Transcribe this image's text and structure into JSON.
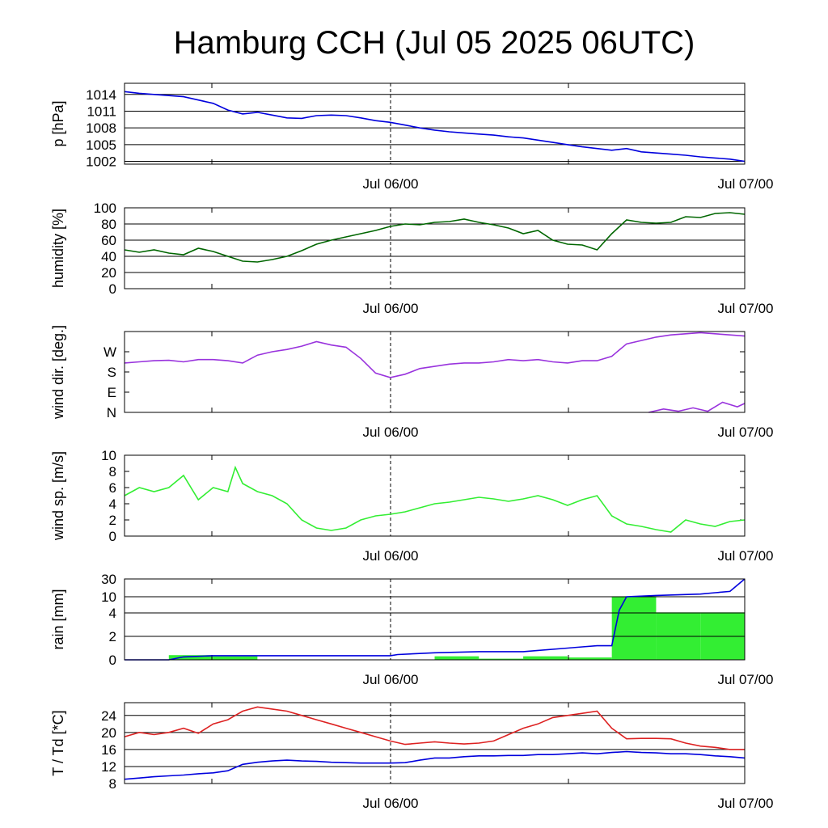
{
  "title": "Hamburg CCH (Jul 05 2025 06UTC)",
  "x_labels": [
    "Jul 06/00",
    "Jul 07/00"
  ],
  "chart_data": [
    {
      "type": "line",
      "ylabel": "p [hPa]",
      "ylim": [
        1001.5,
        1016
      ],
      "yticks": [
        1014,
        1011,
        1008,
        1005,
        1002
      ],
      "ytick_labels": [
        "1014",
        "1011",
        "1008",
        "1005",
        "1002"
      ],
      "grid": true,
      "xlim": [
        0,
        42
      ],
      "series": [
        {
          "color": "#0000dd",
          "x": [
            0,
            1,
            2,
            3,
            4,
            5,
            6,
            7,
            8,
            9,
            10,
            11,
            12,
            13,
            14,
            15,
            16,
            17,
            18,
            19,
            20,
            21,
            22,
            23,
            24,
            25,
            26,
            27,
            28,
            29,
            30,
            31,
            32,
            33,
            34,
            35,
            36,
            37,
            38,
            39,
            40,
            41,
            42
          ],
          "y": [
            1014.5,
            1014.2,
            1014.0,
            1013.8,
            1013.6,
            1013.0,
            1012.4,
            1011.2,
            1010.5,
            1010.8,
            1010.3,
            1009.8,
            1009.7,
            1010.2,
            1010.3,
            1010.2,
            1009.8,
            1009.3,
            1009.0,
            1008.5,
            1008.0,
            1007.6,
            1007.3,
            1007.1,
            1006.9,
            1006.7,
            1006.4,
            1006.2,
            1005.8,
            1005.4,
            1005.0,
            1004.6,
            1004.3,
            1004.0,
            1004.3,
            1003.7,
            1003.5,
            1003.3,
            1003.1,
            1002.8,
            1002.6,
            1002.4,
            1002.0
          ]
        }
      ]
    },
    {
      "type": "line",
      "ylabel": "humidity [%]",
      "ylim": [
        0,
        100
      ],
      "yticks": [
        100,
        80,
        60,
        40,
        20,
        0
      ],
      "ytick_labels": [
        "100",
        "80",
        "60",
        "40",
        "20",
        "0"
      ],
      "grid": true,
      "xlim": [
        0,
        42
      ],
      "series": [
        {
          "color": "#006600",
          "x": [
            0,
            1,
            2,
            3,
            4,
            5,
            6,
            7,
            8,
            9,
            10,
            11,
            12,
            13,
            14,
            15,
            16,
            17,
            18,
            19,
            20,
            21,
            22,
            23,
            24,
            25,
            26,
            27,
            28,
            29,
            30,
            31,
            32,
            33,
            34,
            35,
            36,
            37,
            38,
            39,
            40,
            41,
            42
          ],
          "y": [
            48,
            45,
            48,
            44,
            42,
            50,
            46,
            40,
            34,
            33,
            36,
            40,
            47,
            55,
            60,
            64,
            68,
            72,
            77,
            80,
            79,
            82,
            83,
            86,
            82,
            79,
            75,
            68,
            72,
            60,
            55,
            54,
            48,
            68,
            85,
            82,
            81,
            82,
            89,
            88,
            93,
            94,
            92
          ]
        }
      ]
    },
    {
      "type": "line",
      "ylabel": "wind dir. [deg.]",
      "ylim": [
        0,
        360
      ],
      "yticks": [
        270,
        180,
        90,
        0
      ],
      "ytick_labels": [
        "W",
        "S",
        "E",
        "N"
      ],
      "grid": false,
      "xlim": [
        0,
        42
      ],
      "series": [
        {
          "color": "#9933dd",
          "x": [
            0,
            1,
            2,
            3,
            4,
            5,
            6,
            7,
            8,
            9,
            10,
            11,
            12,
            13,
            14,
            15,
            16,
            17,
            18,
            19,
            20,
            21,
            22,
            23,
            24,
            25,
            26,
            27,
            28,
            29,
            30,
            31,
            32,
            33,
            34,
            35,
            36,
            37,
            38,
            39,
            40,
            41,
            42
          ],
          "y": [
            220,
            225,
            230,
            232,
            225,
            235,
            235,
            230,
            220,
            255,
            270,
            280,
            295,
            315,
            300,
            290,
            240,
            175,
            155,
            170,
            195,
            205,
            215,
            220,
            220,
            225,
            235,
            230,
            235,
            225,
            220,
            230,
            230,
            250,
            305,
            320,
            335,
            345,
            350,
            355,
            350,
            345,
            340
          ]
        },
        {
          "color": "#9933dd",
          "x": [
            35.5,
            36.5,
            37.5,
            38.5,
            39.5,
            40.5,
            41.5,
            42
          ],
          "y": [
            0,
            15,
            5,
            20,
            5,
            45,
            25,
            40
          ]
        }
      ]
    },
    {
      "type": "line",
      "ylabel": "wind sp. [m/s]",
      "ylim": [
        0,
        10
      ],
      "yticks": [
        10,
        8,
        6,
        4,
        2,
        0
      ],
      "ytick_labels": [
        "10",
        "8",
        "6",
        "4",
        "2",
        "0"
      ],
      "grid": false,
      "xlim": [
        0,
        42
      ],
      "series": [
        {
          "color": "#33ee33",
          "x": [
            0,
            1,
            2,
            3,
            4,
            5,
            6,
            7,
            7.5,
            8,
            9,
            10,
            11,
            12,
            13,
            14,
            15,
            16,
            17,
            18,
            19,
            20,
            21,
            22,
            23,
            24,
            25,
            26,
            27,
            28,
            29,
            30,
            31,
            32,
            33,
            34,
            35,
            36,
            37,
            38,
            39,
            40,
            41,
            42
          ],
          "y": [
            5.0,
            6.0,
            5.5,
            6.0,
            7.5,
            4.5,
            6.0,
            5.5,
            8.5,
            6.5,
            5.5,
            5.0,
            4.0,
            2.0,
            1.0,
            0.7,
            1.0,
            2.0,
            2.5,
            2.7,
            3.0,
            3.5,
            4.0,
            4.2,
            4.5,
            4.8,
            4.6,
            4.3,
            4.6,
            5.0,
            4.5,
            3.8,
            4.5,
            5.0,
            2.5,
            1.5,
            1.2,
            0.8,
            0.5,
            2.0,
            1.5,
            1.2,
            1.8,
            2.0
          ]
        }
      ]
    },
    {
      "type": "bar+line",
      "ylabel": "rain [mm]",
      "ylim": [
        0,
        30
      ],
      "yticks": [
        30,
        10,
        4,
        2,
        0
      ],
      "ytick_labels": [
        "30",
        "10",
        "4",
        "2",
        "0"
      ],
      "grid": true,
      "xlim": [
        0,
        42
      ],
      "bars": {
        "color": "#33ee33",
        "x_start": [
          3,
          6,
          15,
          18,
          21,
          24,
          27,
          30,
          33,
          36,
          39
        ],
        "x_end": [
          6,
          9,
          18,
          21,
          24,
          27,
          30,
          33,
          36,
          39,
          42
        ],
        "values": [
          0.4,
          0.3,
          0.0,
          0.0,
          0.3,
          0.1,
          0.3,
          0.2,
          10.5,
          4.2,
          4.2
        ]
      },
      "line": {
        "color": "#0000dd",
        "x": [
          0,
          3,
          4,
          6,
          9,
          12,
          15,
          18,
          18.5,
          21,
          24,
          27,
          28,
          30,
          31,
          32,
          33,
          33.5,
          34,
          36,
          39,
          40,
          41,
          42
        ],
        "y": [
          0,
          0,
          0.25,
          0.35,
          0.35,
          0.35,
          0.35,
          0.35,
          0.45,
          0.6,
          0.7,
          0.7,
          0.8,
          1.0,
          1.1,
          1.2,
          1.2,
          5.0,
          10.0,
          11.5,
          13.0,
          14.5,
          16.0,
          30.0
        ]
      }
    },
    {
      "type": "line",
      "ylabel": "T / Td [*C]",
      "ylim": [
        8,
        27
      ],
      "yticks": [
        24,
        20,
        16,
        12,
        8
      ],
      "ytick_labels": [
        "24",
        "20",
        "16",
        "12",
        "8"
      ],
      "grid": true,
      "xlim": [
        0,
        42
      ],
      "series": [
        {
          "color": "#dd2222",
          "x": [
            0,
            1,
            2,
            3,
            4,
            5,
            6,
            7,
            8,
            9,
            10,
            11,
            12,
            13,
            14,
            15,
            16,
            17,
            18,
            19,
            20,
            21,
            22,
            23,
            24,
            25,
            26,
            27,
            28,
            29,
            30,
            31,
            32,
            33,
            34,
            35,
            36,
            37,
            38,
            39,
            40,
            41,
            42
          ],
          "y": [
            19,
            20,
            19.5,
            20,
            21,
            19.8,
            22,
            23,
            25,
            26,
            25.5,
            25,
            24,
            23,
            22,
            21,
            20,
            19,
            18,
            17.2,
            17.5,
            17.8,
            17.5,
            17.3,
            17.5,
            18,
            19.5,
            21,
            22,
            23.5,
            24,
            24.5,
            25,
            21,
            18.5,
            18.6,
            18.6,
            18.5,
            17.5,
            16.8,
            16.5,
            16.0,
            16.0
          ]
        },
        {
          "color": "#0000dd",
          "x": [
            0,
            1,
            2,
            3,
            4,
            5,
            6,
            7,
            8,
            9,
            10,
            11,
            12,
            13,
            14,
            15,
            16,
            17,
            18,
            19,
            20,
            21,
            22,
            23,
            24,
            25,
            26,
            27,
            28,
            29,
            30,
            31,
            32,
            33,
            34,
            35,
            36,
            37,
            38,
            39,
            40,
            41,
            42
          ],
          "y": [
            9,
            9.3,
            9.6,
            9.8,
            10.0,
            10.3,
            10.5,
            11.0,
            12.5,
            13.0,
            13.3,
            13.5,
            13.3,
            13.2,
            13.0,
            12.9,
            12.8,
            12.8,
            12.8,
            12.9,
            13.5,
            14.0,
            14.0,
            14.3,
            14.5,
            14.5,
            14.6,
            14.6,
            14.8,
            14.8,
            15.0,
            15.2,
            15.0,
            15.3,
            15.5,
            15.3,
            15.2,
            15.0,
            15.0,
            14.8,
            14.5,
            14.3,
            14.0
          ]
        }
      ]
    }
  ]
}
